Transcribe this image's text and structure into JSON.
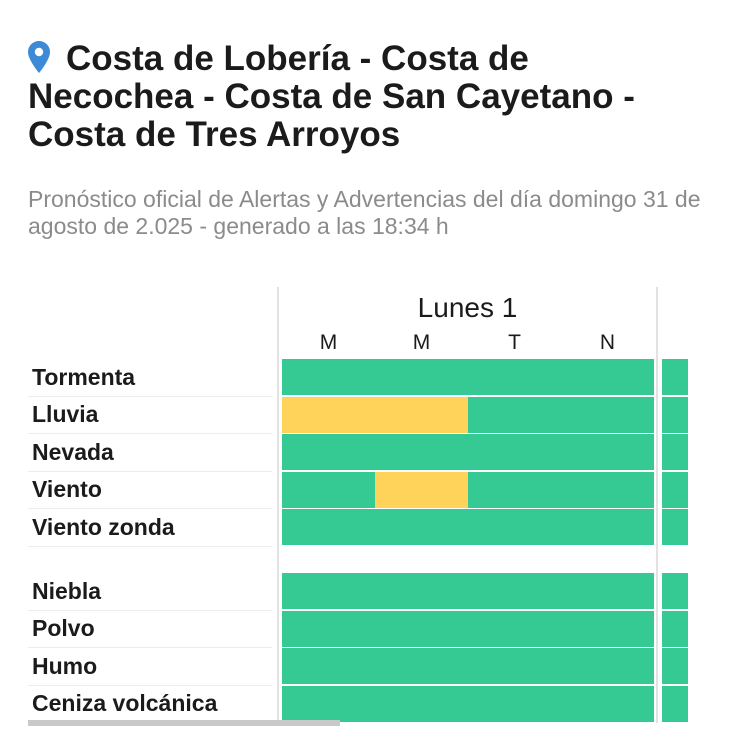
{
  "location": {
    "title": "Costa de Lobería - Costa de Necochea - Costa de San Cayetano - Costa de Tres Arroyos",
    "icon": "map-pin-icon"
  },
  "subtitle": "Pronóstico oficial de Alertas y Advertencias del día domingo 31 de agosto de 2.025 - generado a las 18:34 h",
  "colors": {
    "green": "#35c994",
    "yellow": "#ffd35a",
    "pin": "#3d8ad6"
  },
  "table": {
    "day": "Lunes 1",
    "periods": [
      "M",
      "M",
      "T",
      "N"
    ],
    "group1": [
      {
        "label": "Tormenta",
        "levels": [
          "green",
          "green",
          "green",
          "green"
        ],
        "next": "green"
      },
      {
        "label": "Lluvia",
        "levels": [
          "yellow",
          "yellow",
          "green",
          "green"
        ],
        "next": "green"
      },
      {
        "label": "Nevada",
        "levels": [
          "green",
          "green",
          "green",
          "green"
        ],
        "next": "green"
      },
      {
        "label": "Viento",
        "levels": [
          "green",
          "yellow",
          "green",
          "green"
        ],
        "next": "green"
      },
      {
        "label": "Viento zonda",
        "levels": [
          "green",
          "green",
          "green",
          "green"
        ],
        "next": "green"
      }
    ],
    "group2": [
      {
        "label": "Niebla",
        "levels": [
          "green",
          "green",
          "green",
          "green"
        ],
        "next": "green"
      },
      {
        "label": "Polvo",
        "levels": [
          "green",
          "green",
          "green",
          "green"
        ],
        "next": "green"
      },
      {
        "label": "Humo",
        "levels": [
          "green",
          "green",
          "green",
          "green"
        ],
        "next": "green"
      },
      {
        "label": "Ceniza volcánica",
        "levels": [
          "green",
          "green",
          "green",
          "green"
        ],
        "next": "green"
      }
    ]
  }
}
